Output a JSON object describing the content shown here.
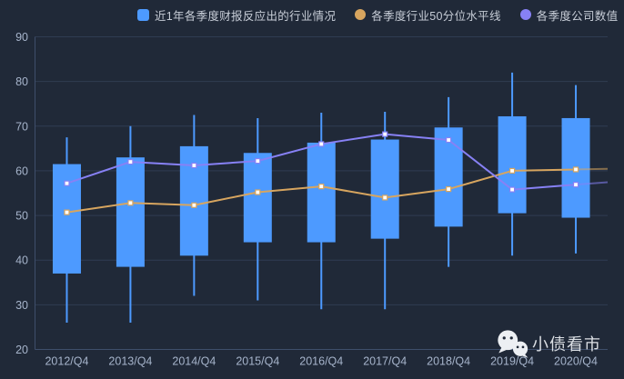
{
  "legend": {
    "items": [
      {
        "label": "近1年各季度财报反应出的行业情况",
        "marker": "square",
        "color": "#4d9aff"
      },
      {
        "label": "各季度行业50分位水平线",
        "marker": "circle",
        "color": "#d7a55f"
      },
      {
        "label": "各季度公司数值",
        "marker": "circle",
        "color": "#8781f5"
      }
    ]
  },
  "watermark": {
    "text": "小债看市",
    "icon": "wechat-icon"
  },
  "palette": {
    "background": "#202938",
    "candle": "#4d9aff",
    "median_line": "#d7a55f",
    "company_line": "#8781f5",
    "gridline": "#2f3c52",
    "axis_line": "#3e4e6b",
    "axis_label": "#a6b4cb",
    "marker_fill": "#ffffff"
  },
  "chart_data": {
    "type": "candlestick",
    "title": "",
    "categories": [
      "2012/Q4",
      "2013/Q4",
      "2014/Q4",
      "2015/Q4",
      "2016/Q4",
      "2017/Q4",
      "2018/Q4",
      "2019/Q4",
      "2020/Q4"
    ],
    "ylim": [
      20,
      90
    ],
    "yticks": [
      20,
      30,
      40,
      50,
      60,
      70,
      80,
      90
    ],
    "grid": "horizontal",
    "legend_position": "top",
    "series": [
      {
        "name": "近1年各季度财报反应出的行业情况",
        "type": "candlestick",
        "color": "#4d9aff",
        "values": [
          {
            "low": 26,
            "q1": 37,
            "q3": 61.5,
            "high": 67.5
          },
          {
            "low": 26,
            "q1": 38.5,
            "q3": 63,
            "high": 70
          },
          {
            "low": 32,
            "q1": 41,
            "q3": 65.5,
            "high": 72.5
          },
          {
            "low": 31,
            "q1": 44,
            "q3": 64,
            "high": 71.8
          },
          {
            "low": 29,
            "q1": 44,
            "q3": 66.3,
            "high": 73
          },
          {
            "low": 29,
            "q1": 44.8,
            "q3": 67,
            "high": 73.2
          },
          {
            "low": 38.5,
            "q1": 47.5,
            "q3": 69.7,
            "high": 76.5
          },
          {
            "low": 41,
            "q1": 50.5,
            "q3": 72.2,
            "high": 82
          },
          {
            "low": 41.5,
            "q1": 49.5,
            "q3": 71.8,
            "high": 79.2
          }
        ]
      },
      {
        "name": "各季度行业50分位水平线",
        "type": "line",
        "color": "#d7a55f",
        "values": [
          50.7,
          52.8,
          52.3,
          55.2,
          56.5,
          54,
          55.9,
          60,
          60.3
        ]
      },
      {
        "name": "各季度公司数值",
        "type": "line",
        "color": "#8781f5",
        "values": [
          57.2,
          62,
          61.2,
          62.2,
          66,
          68.2,
          66.9,
          55.8,
          56.9
        ]
      }
    ]
  }
}
